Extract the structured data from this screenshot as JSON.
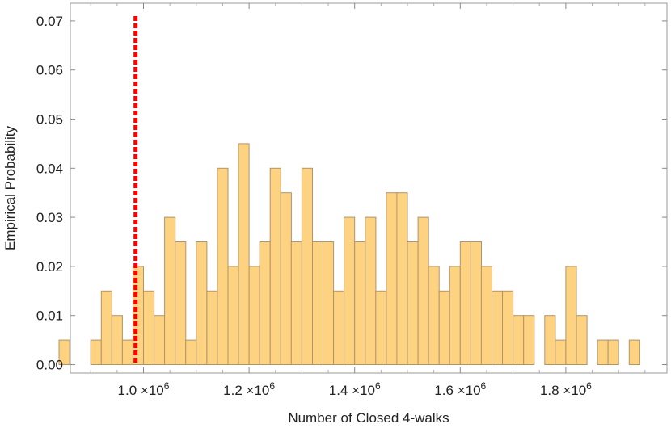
{
  "chart_data": {
    "type": "bar",
    "subtype": "histogram",
    "xlabel": "Number of Closed 4-walks",
    "ylabel": "Empirical Probability",
    "xlim": [
      830000,
      1970000
    ],
    "ylim": [
      0,
      0.075
    ],
    "x_ticks": [
      {
        "value": 1000000,
        "mantissa": "1.0",
        "base": "×10",
        "exponent": "6"
      },
      {
        "value": 1200000,
        "mantissa": "1.2",
        "base": "×10",
        "exponent": "6"
      },
      {
        "value": 1400000,
        "mantissa": "1.4",
        "base": "×10",
        "exponent": "6"
      },
      {
        "value": 1600000,
        "mantissa": "1.6",
        "base": "×10",
        "exponent": "6"
      },
      {
        "value": 1800000,
        "mantissa": "1.8",
        "base": "×10",
        "exponent": "6"
      }
    ],
    "y_ticks": [
      {
        "value": 0.0,
        "label": "0.00"
      },
      {
        "value": 0.01,
        "label": "0.01"
      },
      {
        "value": 0.02,
        "label": "0.02"
      },
      {
        "value": 0.03,
        "label": "0.03"
      },
      {
        "value": 0.04,
        "label": "0.04"
      },
      {
        "value": 0.05,
        "label": "0.05"
      },
      {
        "value": 0.06,
        "label": "0.06"
      },
      {
        "value": 0.07,
        "label": "0.07"
      }
    ],
    "bin_start": 840000,
    "bin_width": 20000,
    "values": [
      0.005,
      0,
      0,
      0.005,
      0.015,
      0.01,
      0.005,
      0.02,
      0.015,
      0.01,
      0.03,
      0.025,
      0.005,
      0.025,
      0.015,
      0.04,
      0.02,
      0.045,
      0.02,
      0.025,
      0.04,
      0.035,
      0.025,
      0.04,
      0.025,
      0.025,
      0.015,
      0.03,
      0.025,
      0.03,
      0.015,
      0.035,
      0.035,
      0.025,
      0.03,
      0.02,
      0.015,
      0.02,
      0.025,
      0.025,
      0.02,
      0.015,
      0.015,
      0.01,
      0.01,
      0,
      0.01,
      0.005,
      0.02,
      0.01,
      0,
      0.005,
      0.005,
      0,
      0.005
    ],
    "reference_line": {
      "x": 985000,
      "style": "dashed",
      "color": "#ff0000"
    },
    "bar_fill": "#fdd382",
    "bar_stroke": "#b0946a",
    "grid": false,
    "frame": true
  }
}
